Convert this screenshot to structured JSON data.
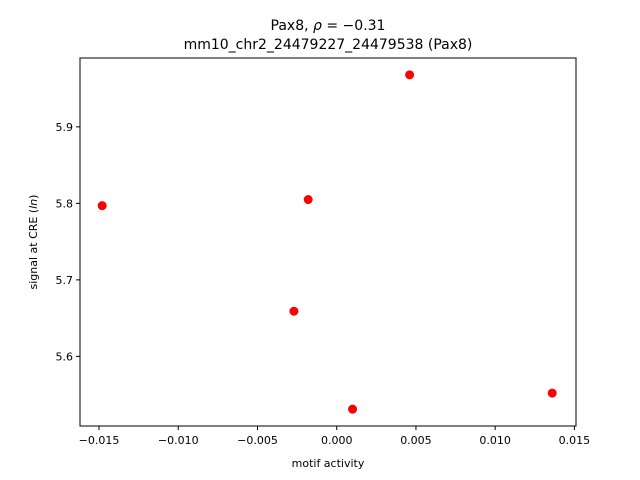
{
  "chart_data": {
    "type": "scatter",
    "title_line1_prefix": "Pax8, ",
    "title_line1_rho": "ρ",
    "title_line1_suffix": " = −0.31",
    "title_line2": "mm10_chr2_24479227_24479538 (Pax8)",
    "xlabel": "motif activity",
    "ylabel_prefix": "signal at CRE (",
    "ylabel_italic": "ln",
    "ylabel_suffix": ")",
    "xlim": [
      -0.0162,
      0.0151
    ],
    "ylim": [
      5.509,
      5.99
    ],
    "x_ticks": [
      -0.015,
      -0.01,
      -0.005,
      0.0,
      0.005,
      0.01,
      0.015
    ],
    "x_tick_labels": [
      "−0.015",
      "−0.010",
      "−0.005",
      "0.000",
      "0.005",
      "0.010",
      "0.015"
    ],
    "y_ticks": [
      5.6,
      5.7,
      5.8,
      5.9
    ],
    "y_tick_labels": [
      "5.6",
      "5.7",
      "5.8",
      "5.9"
    ],
    "grid": false,
    "marker_color": "#ff0000",
    "points": [
      {
        "x": -0.0148,
        "y": 5.797
      },
      {
        "x": -0.0027,
        "y": 5.659
      },
      {
        "x": -0.0018,
        "y": 5.805
      },
      {
        "x": 0.001,
        "y": 5.531
      },
      {
        "x": 0.0046,
        "y": 5.968
      },
      {
        "x": 0.0136,
        "y": 5.552
      }
    ]
  }
}
